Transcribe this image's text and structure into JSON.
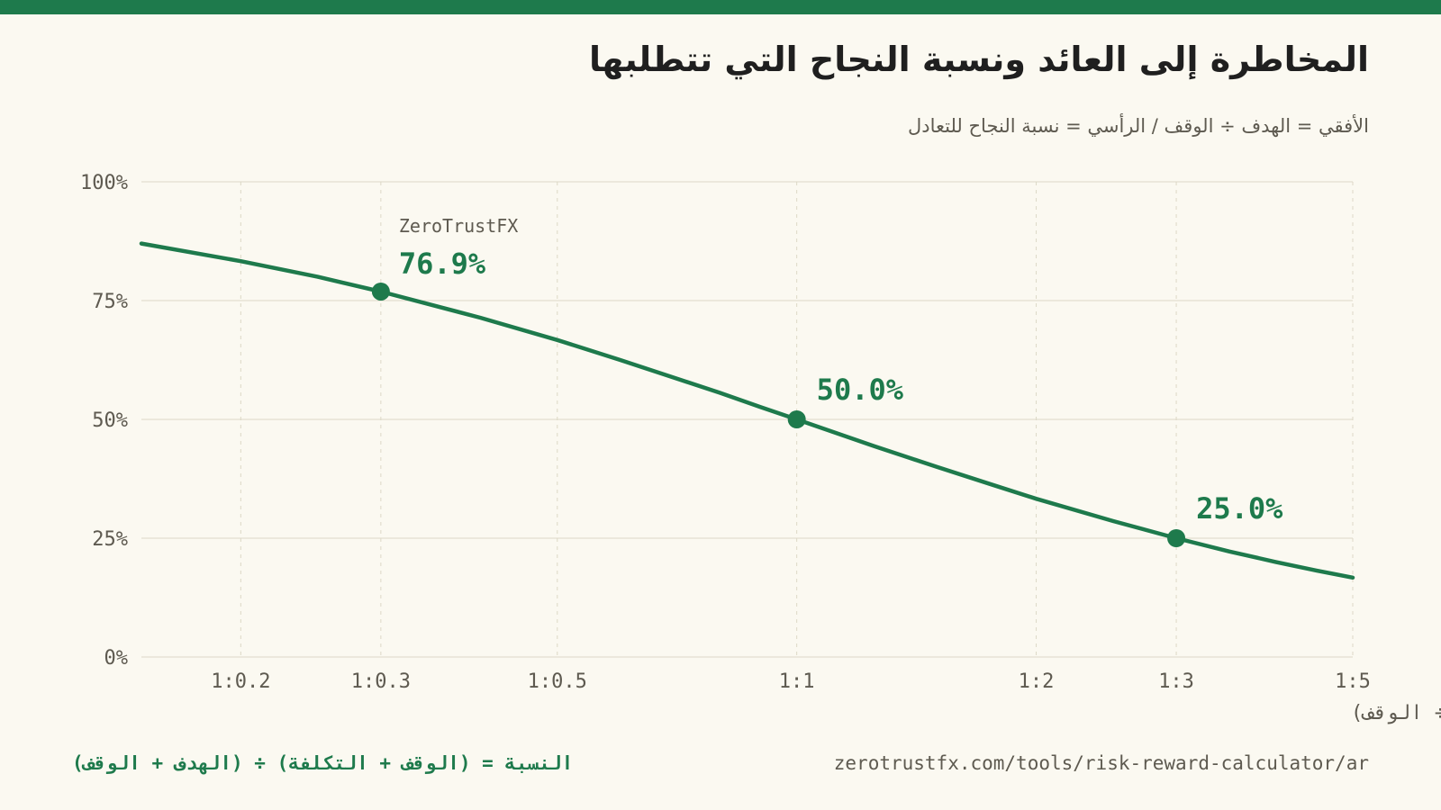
{
  "title": "المخاطرة إلى العائد ونسبة النجاح التي تتطلبها",
  "subtitle": "الأفقي = الهدف ÷ الوقف / الرأسي = نسبة النجاح للتعادل",
  "footer": {
    "formula": "النسبة = (الوقف + التكلفة) ÷ (الهدف + الوقف)",
    "url": "zerotrustfx.com/tools/risk-reward-calculator/ar"
  },
  "colors": {
    "accent": "#1e7a4c",
    "background": "#fbf9f1",
    "grid": "#dcd8c6",
    "text": "#5e5a50"
  },
  "chart_data": {
    "type": "line",
    "xlabel": "المخاطرة إلى العائد (الهدف ÷ الوقف)",
    "ylabel": "",
    "x_scale": "log",
    "xlim": [
      0.15,
      5
    ],
    "ylim": [
      0,
      100
    ],
    "x_ticks": [
      {
        "value": 0.2,
        "label": "1:0.2"
      },
      {
        "value": 0.3,
        "label": "1:0.3"
      },
      {
        "value": 0.5,
        "label": "1:0.5"
      },
      {
        "value": 1,
        "label": "1:1"
      },
      {
        "value": 2,
        "label": "1:2"
      },
      {
        "value": 3,
        "label": "1:3"
      },
      {
        "value": 5,
        "label": "1:5"
      }
    ],
    "y_ticks": [
      {
        "value": 0,
        "label": "0%"
      },
      {
        "value": 25,
        "label": "25%"
      },
      {
        "value": 50,
        "label": "50%"
      },
      {
        "value": 75,
        "label": "75%"
      },
      {
        "value": 100,
        "label": "100%"
      }
    ],
    "grid": true,
    "series": [
      {
        "x": [
          0.15,
          0.2,
          0.25,
          0.3,
          0.4,
          0.5,
          0.6,
          0.7,
          0.8,
          0.9,
          1,
          1.25,
          1.5,
          1.75,
          2,
          2.5,
          3,
          3.5,
          4,
          4.5,
          5
        ],
        "y": [
          87.0,
          83.3,
          80.0,
          76.9,
          71.4,
          66.7,
          62.5,
          58.8,
          55.6,
          52.6,
          50.0,
          44.4,
          40.0,
          36.4,
          33.3,
          28.6,
          25.0,
          22.2,
          20.0,
          18.2,
          16.7
        ]
      }
    ],
    "highlights": [
      {
        "x": 0.3,
        "y": 76.9,
        "label": "76.9%",
        "tag": "ZeroTrustFX"
      },
      {
        "x": 1,
        "y": 50.0,
        "label": "50.0%",
        "tag": ""
      },
      {
        "x": 3,
        "y": 25.0,
        "label": "25.0%",
        "tag": ""
      }
    ]
  }
}
